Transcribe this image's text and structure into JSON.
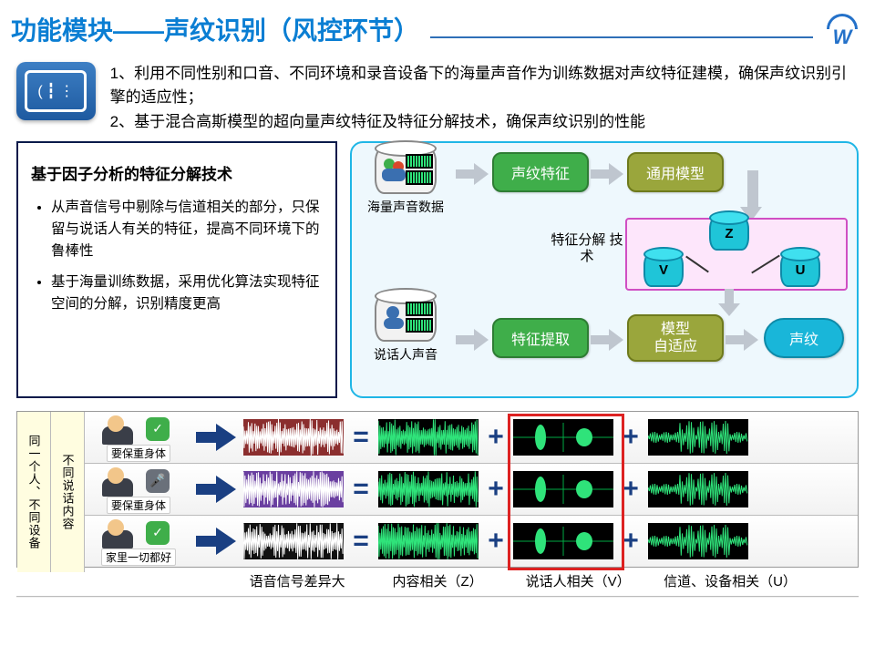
{
  "title": {
    "text": "功能模块——声纹识别（风控环节）",
    "color": "#0a7ed3"
  },
  "intro": {
    "line1": "1、利用不同性别和口音、不同环境和录音设备下的海量声音作为训练数据对声纹特征建模，确保声纹识别引擎的适应性；",
    "line2": "2、基于混合高斯模型的超向量声纹特征及特征分解技术，确保声纹识别的性能"
  },
  "leftbox": {
    "heading": "基于因子分析的特征分解技术",
    "bullets": [
      "从声音信号中剔除与信道相关的部分，只保留与说话人有关的特征，提高不同环境下的鲁棒性",
      "基于海量训练数据，采用优化算法实现特征空间的分解，识别精度更高"
    ]
  },
  "flow": {
    "src_top": "海量声音数据",
    "src_bot": "说话人声音",
    "n1": "声纹特征",
    "n2": "通用模型",
    "n3": "特征提取",
    "n4": "模型\n自适应",
    "n5": "声纹",
    "decomp_label": "特征分解\n技术",
    "cyl_z": "Z",
    "cyl_v": "V",
    "cyl_u": "U",
    "colors": {
      "green": "#3fae4a",
      "olive": "#9aa63c",
      "cyan": "#19b6d9",
      "decomp_bg": "#fde6fb",
      "decomp_border": "#d04fc3"
    }
  },
  "bottom": {
    "vlabel_left": "同一个人、不同设备",
    "vlabel_right": "不同说话内容",
    "rows": [
      {
        "caption": "要保重身体",
        "dev_color": "#3fae4a",
        "dev_glyph": "✓",
        "raw_color": "#8b2e2e"
      },
      {
        "caption": "要保重身体",
        "dev_color": "#6a707a",
        "dev_glyph": "🎤",
        "raw_color": "#6a3fa0"
      },
      {
        "caption": "家里一切都好",
        "dev_color": "#3fae4a",
        "dev_glyph": "✓",
        "raw_color": "#111111"
      }
    ],
    "wave_color": "#2fe37a",
    "op_eq": "=",
    "op_plus": "+",
    "highlight_col": 2
  },
  "footer": {
    "a": "语音信号差异大",
    "b": "内容相关（Z）",
    "c": "说话人相关（V）",
    "d": "信道、设备相关（U）"
  }
}
